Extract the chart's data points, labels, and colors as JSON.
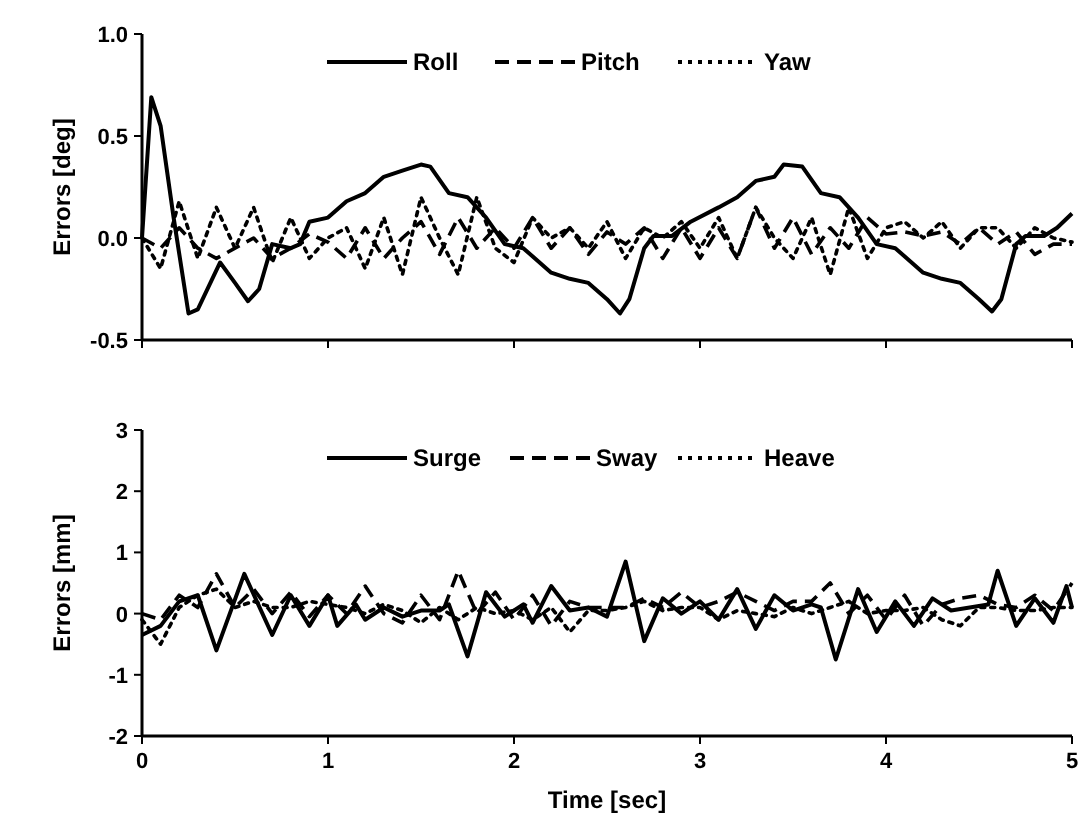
{
  "chart_data": [
    {
      "type": "line",
      "ylabel": "Errors [deg]",
      "xlim": [
        0,
        5
      ],
      "xticks": [
        0,
        1,
        2,
        3,
        4,
        5
      ],
      "ylim": [
        -0.5,
        1
      ],
      "yticks": [
        {
          "value": -0.5,
          "label": "-0.5"
        },
        {
          "value": 0,
          "label": "0.0"
        },
        {
          "value": 0.5,
          "label": "0.5"
        },
        {
          "value": 1,
          "label": "1.0"
        }
      ],
      "legend": "top",
      "tick_labels": "y",
      "x": [
        0,
        0.1,
        0.2,
        0.3,
        0.4,
        0.5,
        0.6,
        0.7,
        0.8,
        0.9,
        1,
        1.1,
        1.2,
        1.3,
        1.4,
        1.5,
        1.6,
        1.7,
        1.8,
        1.9,
        2,
        2.1,
        2.2,
        2.3,
        2.4,
        2.5,
        2.6,
        2.7,
        2.8,
        2.9,
        3,
        3.1,
        3.2,
        3.3,
        3.4,
        3.5,
        3.6,
        3.7,
        3.8,
        3.9,
        4,
        4.1,
        4.2,
        4.3,
        4.4,
        4.5,
        4.6,
        4.7,
        4.8,
        4.9,
        5
      ],
      "series": [
        {
          "name": "Roll",
          "color": "#000000",
          "line_style": "solid",
          "x": [
            0,
            0.05,
            0.1,
            0.17,
            0.25,
            0.3,
            0.42,
            0.5,
            0.57,
            0.63,
            0.7,
            0.8,
            0.85,
            0.9,
            1,
            1.1,
            1.2,
            1.3,
            1.4,
            1.5,
            1.55,
            1.65,
            1.75,
            1.85,
            1.95,
            2.05,
            2.2,
            2.3,
            2.4,
            2.5,
            2.57,
            2.62,
            2.7,
            2.75,
            2.85,
            2.95,
            3.1,
            3.2,
            3.3,
            3.4,
            3.45,
            3.55,
            3.65,
            3.75,
            3.85,
            3.95,
            4.05,
            4.2,
            4.3,
            4.4,
            4.5,
            4.57,
            4.62,
            4.7,
            4.75,
            4.85,
            4.92,
            5
          ],
          "values": [
            0,
            0.69,
            0.55,
            0.1,
            -0.37,
            -0.35,
            -0.12,
            -0.22,
            -0.31,
            -0.25,
            -0.03,
            -0.05,
            -0.03,
            0.08,
            0.1,
            0.18,
            0.22,
            0.3,
            0.33,
            0.36,
            0.35,
            0.22,
            0.2,
            0.1,
            -0.03,
            -0.05,
            -0.17,
            -0.2,
            -0.22,
            -0.3,
            -0.37,
            -0.3,
            -0.05,
            0.01,
            0.01,
            0.08,
            0.15,
            0.2,
            0.28,
            0.3,
            0.36,
            0.35,
            0.22,
            0.2,
            0.1,
            -0.03,
            -0.05,
            -0.17,
            -0.2,
            -0.22,
            -0.3,
            -0.36,
            -0.3,
            -0.03,
            0.01,
            0.01,
            0.05,
            0.12
          ]
        },
        {
          "name": "Pitch",
          "color": "#000000",
          "line_style": "dashed",
          "values": [
            0,
            -0.05,
            0.05,
            -0.05,
            -0.1,
            -0.05,
            0,
            -0.1,
            -0.05,
            0.02,
            -0.02,
            -0.1,
            0.05,
            -0.1,
            0,
            0.08,
            -0.08,
            0.1,
            -0.05,
            0.05,
            -0.05,
            0.1,
            -0.05,
            0.05,
            -0.08,
            0.03,
            -0.03,
            0.05,
            -0.1,
            0.05,
            -0.1,
            0.05,
            -0.1,
            0.15,
            -0.05,
            0.1,
            -0.08,
            0.05,
            -0.05,
            0.1,
            0.02,
            0.03,
            0.01,
            0.03,
            -0.03,
            0.05,
            -0.03,
            0.03,
            -0.08,
            -0.03,
            -0.03
          ]
        },
        {
          "name": "Yaw",
          "color": "#000000",
          "line_style": "dotted",
          "values": [
            0,
            -0.15,
            0.18,
            -0.1,
            0.15,
            -0.05,
            0.15,
            -0.12,
            0.1,
            -0.1,
            0,
            0.05,
            -0.15,
            0.1,
            -0.18,
            0.2,
            0,
            -0.18,
            0.2,
            -0.05,
            -0.12,
            0.1,
            0,
            0.05,
            -0.05,
            0.08,
            -0.1,
            0.05,
            0,
            0.08,
            -0.05,
            0.1,
            -0.1,
            0.15,
            0,
            -0.1,
            0.1,
            -0.18,
            0.15,
            -0.1,
            0.05,
            0.08,
            0,
            0.08,
            -0.05,
            0.05,
            0.05,
            -0.05,
            0.05,
            0,
            -0.02
          ]
        }
      ]
    },
    {
      "type": "line",
      "xlabel": "Time [sec]",
      "ylabel": "Errors [mm]",
      "xlim": [
        0,
        5
      ],
      "xticks": [
        0,
        1,
        2,
        3,
        4,
        5
      ],
      "ylim": [
        -2,
        3
      ],
      "yticks": [
        -2,
        -1,
        0,
        1,
        2,
        3
      ],
      "legend": "top",
      "x": [
        0,
        0.1,
        0.2,
        0.3,
        0.4,
        0.5,
        0.6,
        0.7,
        0.8,
        0.9,
        1,
        1.1,
        1.2,
        1.3,
        1.4,
        1.5,
        1.6,
        1.7,
        1.8,
        1.9,
        2,
        2.1,
        2.2,
        2.3,
        2.4,
        2.5,
        2.6,
        2.7,
        2.8,
        2.9,
        3,
        3.1,
        3.2,
        3.3,
        3.4,
        3.5,
        3.6,
        3.7,
        3.8,
        3.9,
        4,
        4.1,
        4.2,
        4.3,
        4.4,
        4.5,
        4.6,
        4.7,
        4.8,
        4.9,
        5
      ],
      "series": [
        {
          "name": "Surge",
          "color": "#000000",
          "line_style": "solid",
          "x": [
            0,
            0.1,
            0.2,
            0.3,
            0.4,
            0.55,
            0.7,
            0.8,
            0.9,
            1,
            1.05,
            1.15,
            1.2,
            1.3,
            1.4,
            1.5,
            1.6,
            1.65,
            1.75,
            1.85,
            1.95,
            2.05,
            2.1,
            2.2,
            2.3,
            2.4,
            2.5,
            2.6,
            2.7,
            2.8,
            2.9,
            3,
            3.1,
            3.2,
            3.3,
            3.4,
            3.5,
            3.6,
            3.65,
            3.73,
            3.85,
            3.95,
            4.05,
            4.15,
            4.25,
            4.35,
            4.45,
            4.55,
            4.6,
            4.7,
            4.8,
            4.9,
            4.97,
            5
          ],
          "values": [
            -0.35,
            -0.2,
            0.2,
            0.3,
            -0.6,
            0.65,
            -0.35,
            0.3,
            -0.2,
            0.3,
            -0.2,
            0.15,
            -0.1,
            0.1,
            -0.05,
            0.05,
            0.05,
            0.15,
            -0.7,
            0.35,
            -0.05,
            0.15,
            -0.15,
            0.45,
            0.05,
            0.1,
            -0.05,
            0.85,
            -0.45,
            0.25,
            0,
            0.2,
            -0.1,
            0.4,
            -0.25,
            0.3,
            0.05,
            0.15,
            0.1,
            -0.75,
            0.4,
            -0.3,
            0.2,
            -0.2,
            0.25,
            0.05,
            0.1,
            0.15,
            0.7,
            -0.2,
            0.25,
            -0.15,
            0.45,
            0.1
          ]
        },
        {
          "name": "Sway",
          "color": "#000000",
          "line_style": "dashed",
          "values": [
            0,
            -0.1,
            0.3,
            0.1,
            0.65,
            0.1,
            0.4,
            0,
            0.35,
            -0.05,
            0.3,
            0,
            0.45,
            0,
            -0.15,
            0.3,
            -0.1,
            0.7,
            0,
            0.35,
            -0.1,
            0.3,
            -0.2,
            0.2,
            0.1,
            0.1,
            0.1,
            0.25,
            0.1,
            0.35,
            0.1,
            0.2,
            0.35,
            0.2,
            0.05,
            0.2,
            0.2,
            0.5,
            0,
            0.3,
            -0.1,
            0.3,
            -0.2,
            0.15,
            0.25,
            0.3,
            0.15,
            0.1,
            0.3,
            0.05,
            0.5
          ]
        },
        {
          "name": "Heave",
          "color": "#000000",
          "line_style": "dotted",
          "values": [
            -0.1,
            -0.5,
            0.1,
            0.3,
            0.4,
            0.1,
            0.2,
            0.1,
            0.1,
            0.2,
            0.15,
            0.1,
            0,
            0.15,
            0.05,
            -0.15,
            0.1,
            -0.1,
            0.1,
            0,
            0.05,
            -0.1,
            0.1,
            -0.3,
            0.05,
            0.05,
            0.1,
            0.2,
            0.05,
            0.1,
            0.1,
            -0.1,
            0.05,
            0,
            -0.05,
            0.1,
            0,
            0.1,
            0.2,
            0,
            0.05,
            0.05,
            0.1,
            -0.1,
            -0.2,
            0.1,
            0.1,
            0.05,
            0.05,
            0.1,
            0.1
          ]
        }
      ]
    }
  ]
}
